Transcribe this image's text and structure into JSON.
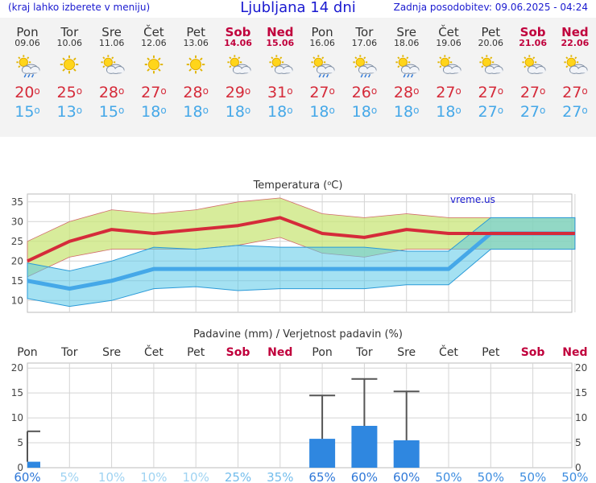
{
  "header": {
    "menu_hint": "(kraj lahko izberete v meniju)",
    "title": "Ljubljana 14 dni",
    "updated": "Zadnja posodobitev: 09.06.2025 - 04:24"
  },
  "colors": {
    "weekend": "#c0003c",
    "tmax": "#d52b3a",
    "tmin": "#45a8e8",
    "precip_bar": "#2f87e0",
    "title_blue": "#1a1ad0"
  },
  "days": [
    {
      "name": "Pon",
      "date": "09.06",
      "weekend": false,
      "icon": "sun-rain-icon",
      "tmax": "20",
      "tmin": "15"
    },
    {
      "name": "Tor",
      "date": "10.06",
      "weekend": false,
      "icon": "sun-icon",
      "tmax": "25",
      "tmin": "13"
    },
    {
      "name": "Sre",
      "date": "11.06",
      "weekend": false,
      "icon": "sun-cloud-icon",
      "tmax": "28",
      "tmin": "15"
    },
    {
      "name": "Čet",
      "date": "12.06",
      "weekend": false,
      "icon": "sun-icon",
      "tmax": "27",
      "tmin": "18"
    },
    {
      "name": "Pet",
      "date": "13.06",
      "weekend": false,
      "icon": "sun-icon",
      "tmax": "28",
      "tmin": "18"
    },
    {
      "name": "Sob",
      "date": "14.06",
      "weekend": true,
      "icon": "sun-cloud-icon",
      "tmax": "29",
      "tmin": "18"
    },
    {
      "name": "Ned",
      "date": "15.06",
      "weekend": true,
      "icon": "sun-cloud-icon",
      "tmax": "31",
      "tmin": "18"
    },
    {
      "name": "Pon",
      "date": "16.06",
      "weekend": false,
      "icon": "sun-rain-icon",
      "tmax": "27",
      "tmin": "18"
    },
    {
      "name": "Tor",
      "date": "17.06",
      "weekend": false,
      "icon": "sun-rain-icon",
      "tmax": "26",
      "tmin": "18"
    },
    {
      "name": "Sre",
      "date": "18.06",
      "weekend": false,
      "icon": "sun-rain-icon",
      "tmax": "28",
      "tmin": "18"
    },
    {
      "name": "Čet",
      "date": "19.06",
      "weekend": false,
      "icon": "sun-cloud-icon",
      "tmax": "27",
      "tmin": "18"
    },
    {
      "name": "Pet",
      "date": "20.06",
      "weekend": false,
      "icon": "sun-cloud-icon",
      "tmax": "27",
      "tmin": "27"
    },
    {
      "name": "Sob",
      "date": "21.06",
      "weekend": true,
      "icon": "sun-cloud-icon",
      "tmax": "27",
      "tmin": "27"
    },
    {
      "name": "Ned",
      "date": "22.06",
      "weekend": true,
      "icon": "sun-cloud-icon",
      "tmax": "27",
      "tmin": "27"
    }
  ],
  "degree_symbol": "o",
  "chart_data": [
    {
      "type": "line",
      "title_prefix": "Temperatura (",
      "title_sup": "o",
      "title_suffix": "C)",
      "watermark": "vreme.us",
      "categories": [
        "Pon",
        "Tor",
        "Sre",
        "Čet",
        "Pet",
        "Sob",
        "Ned",
        "Pon",
        "Tor",
        "Sre",
        "Čet",
        "Pet",
        "Sob",
        "Ned"
      ],
      "ylim": [
        7,
        37
      ],
      "yticks": [
        10,
        15,
        20,
        25,
        30,
        35
      ],
      "grid": true,
      "series": [
        {
          "values": [
            20,
            25,
            28,
            27,
            28,
            29,
            31,
            27,
            26,
            28,
            27,
            27,
            27,
            27
          ]
        },
        {
          "values": [
            15,
            13,
            15,
            18,
            18,
            18,
            18,
            18,
            18,
            18,
            18,
            27,
            27,
            27
          ]
        }
      ],
      "bands": [
        {
          "upper": [
            25,
            30,
            33,
            32,
            33,
            35,
            36,
            32,
            31,
            32,
            31,
            31,
            31,
            31
          ],
          "lower": [
            16,
            21,
            23,
            23,
            23,
            24,
            26,
            22,
            21,
            23,
            23,
            23,
            23,
            23
          ]
        },
        {
          "upper": [
            19.5,
            17.5,
            20,
            23.5,
            23,
            24,
            23.5,
            23.5,
            23.5,
            22.5,
            22.5,
            31,
            31,
            31
          ],
          "lower": [
            10.5,
            8.5,
            10,
            13,
            13.5,
            12.5,
            13,
            13,
            13,
            14,
            14,
            23,
            23,
            23
          ]
        }
      ]
    },
    {
      "type": "bar",
      "title": "Padavine (mm) / Verjetnost padavin (%)",
      "categories": [
        "Pon",
        "Tor",
        "Sre",
        "Čet",
        "Pet",
        "Sob",
        "Ned",
        "Pon",
        "Tor",
        "Sre",
        "Čet",
        "Pet",
        "Sob",
        "Ned"
      ],
      "weekend": [
        false,
        false,
        false,
        false,
        false,
        true,
        true,
        false,
        false,
        false,
        false,
        false,
        true,
        true
      ],
      "ylim": [
        0,
        21
      ],
      "yticks": [
        0,
        5,
        10,
        15,
        20
      ],
      "values": [
        1.2,
        0,
        0,
        0,
        0,
        0,
        0,
        5.8,
        8.4,
        5.5,
        0,
        0,
        0,
        0
      ],
      "error_high": [
        7.3,
        0,
        0,
        0,
        0,
        0,
        0,
        14.5,
        17.8,
        15.3,
        0,
        0,
        0,
        0
      ],
      "probability": [
        "60%",
        "5%",
        "10%",
        "10%",
        "10%",
        "25%",
        "35%",
        "65%",
        "60%",
        "60%",
        "50%",
        "50%",
        "50%",
        "50%"
      ],
      "probability_color": [
        "#2f78d8",
        "#9fd3f2",
        "#9fd3f2",
        "#9fd3f2",
        "#9fd3f2",
        "#73bdec",
        "#73bdec",
        "#2f78d8",
        "#2f78d8",
        "#2f78d8",
        "#3f8ee0",
        "#3f8ee0",
        "#3f8ee0",
        "#3f8ee0"
      ]
    }
  ]
}
